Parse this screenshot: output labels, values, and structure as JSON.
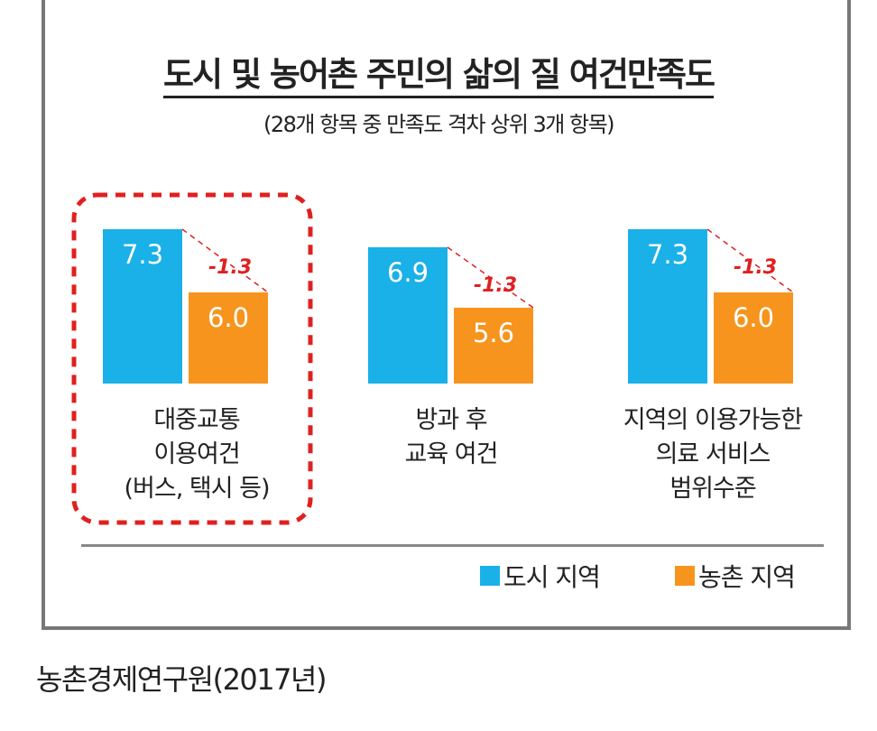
{
  "header": {
    "title": "도시 및 농어촌 주민의 삶의 질 여건만족도",
    "subtitle": "(28개 항목 중 만족도 격차 상위 3개 항목)"
  },
  "chart_data": {
    "type": "bar",
    "title": "도시 및 농어촌 주민의 삶의 질 여건만족도",
    "subtitle": "(28개 항목 중 만족도 격차 상위 3개 항목)",
    "categories": [
      [
        "대중교통",
        "이용여건",
        "(버스, 택시 등)"
      ],
      [
        "방과 후",
        "교육 여건"
      ],
      [
        "지역의 이용가능한",
        "의료 서비스",
        "범위수준"
      ]
    ],
    "series": [
      {
        "name": "도시 지역",
        "color": "#1ab0e8",
        "values": [
          7.3,
          6.9,
          7.3
        ],
        "labels": [
          "7.3",
          "6.9",
          "7.3"
        ]
      },
      {
        "name": "농촌 지역",
        "color": "#f7941d",
        "values": [
          6.0,
          5.6,
          6.0
        ],
        "labels": [
          "6.0",
          "5.6",
          "6.0"
        ]
      }
    ],
    "gaps": [
      "-1.3",
      "-1.3",
      "-1.3"
    ],
    "gap_color": "#e02020",
    "highlight_color": "#e02020",
    "highlighted_category": 0,
    "legend": [
      "도시 지역",
      "농촌 지역"
    ]
  },
  "source": "농촌경제연구원(2017년)"
}
